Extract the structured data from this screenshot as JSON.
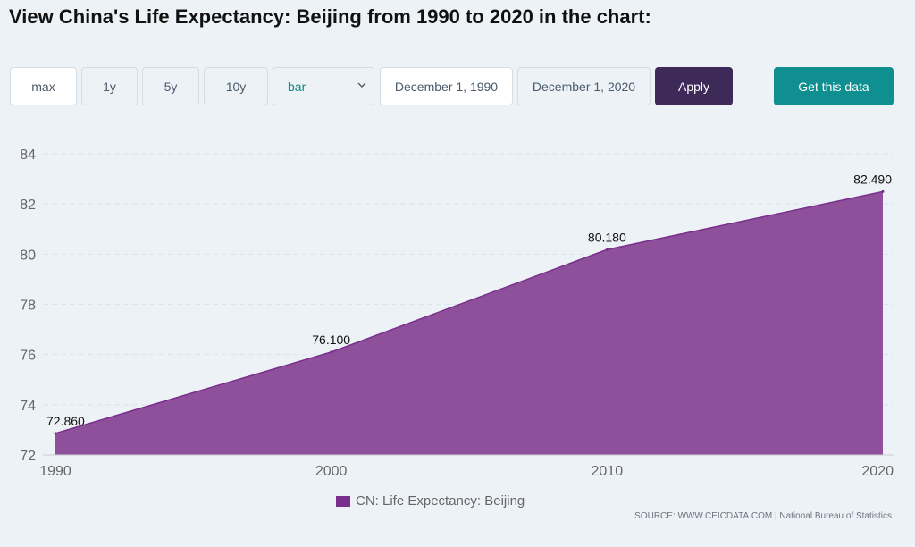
{
  "page": {
    "title": "View China's Life Expectancy: Beijing from 1990 to 2020 in the chart:"
  },
  "toolbar": {
    "ranges": [
      {
        "label": "max",
        "active": true
      },
      {
        "label": "1y",
        "active": false
      },
      {
        "label": "5y",
        "active": false
      },
      {
        "label": "10y",
        "active": false
      }
    ],
    "chart_type": {
      "selected": "bar",
      "icon": "chevron-down-icon"
    },
    "start_date": "December 1, 1990",
    "end_date": "December 1, 2020",
    "apply_label": "Apply",
    "get_data_label": "Get this data"
  },
  "colors": {
    "area_fill": "#8e4f9b",
    "area_line": "#7b2f8c",
    "legend_swatch": "#7b2f8c",
    "apply_bg": "#3e2a58",
    "get_data_bg": "#0f8f8f",
    "grid": "#dde3ea"
  },
  "chart_data": {
    "type": "area",
    "title": "",
    "xlabel": "",
    "ylabel": "",
    "x": [
      1990,
      2000,
      2010,
      2020
    ],
    "series": [
      {
        "name": "CN: Life Expectancy: Beijing",
        "values": [
          72.86,
          76.1,
          80.18,
          82.49
        ],
        "labels": [
          "72.860",
          "76.100",
          "80.180",
          "82.490"
        ]
      }
    ],
    "x_ticks": [
      "1990",
      "2000",
      "2010",
      "2020"
    ],
    "y_ticks": [
      "72",
      "74",
      "76",
      "78",
      "80",
      "82",
      "84"
    ],
    "xlim": [
      1990,
      2020
    ],
    "ylim": [
      72,
      84
    ],
    "grid": true,
    "legend_position": "bottom"
  },
  "footer": {
    "source": "SOURCE: WWW.CEICDATA.COM | National Bureau of Statistics"
  }
}
